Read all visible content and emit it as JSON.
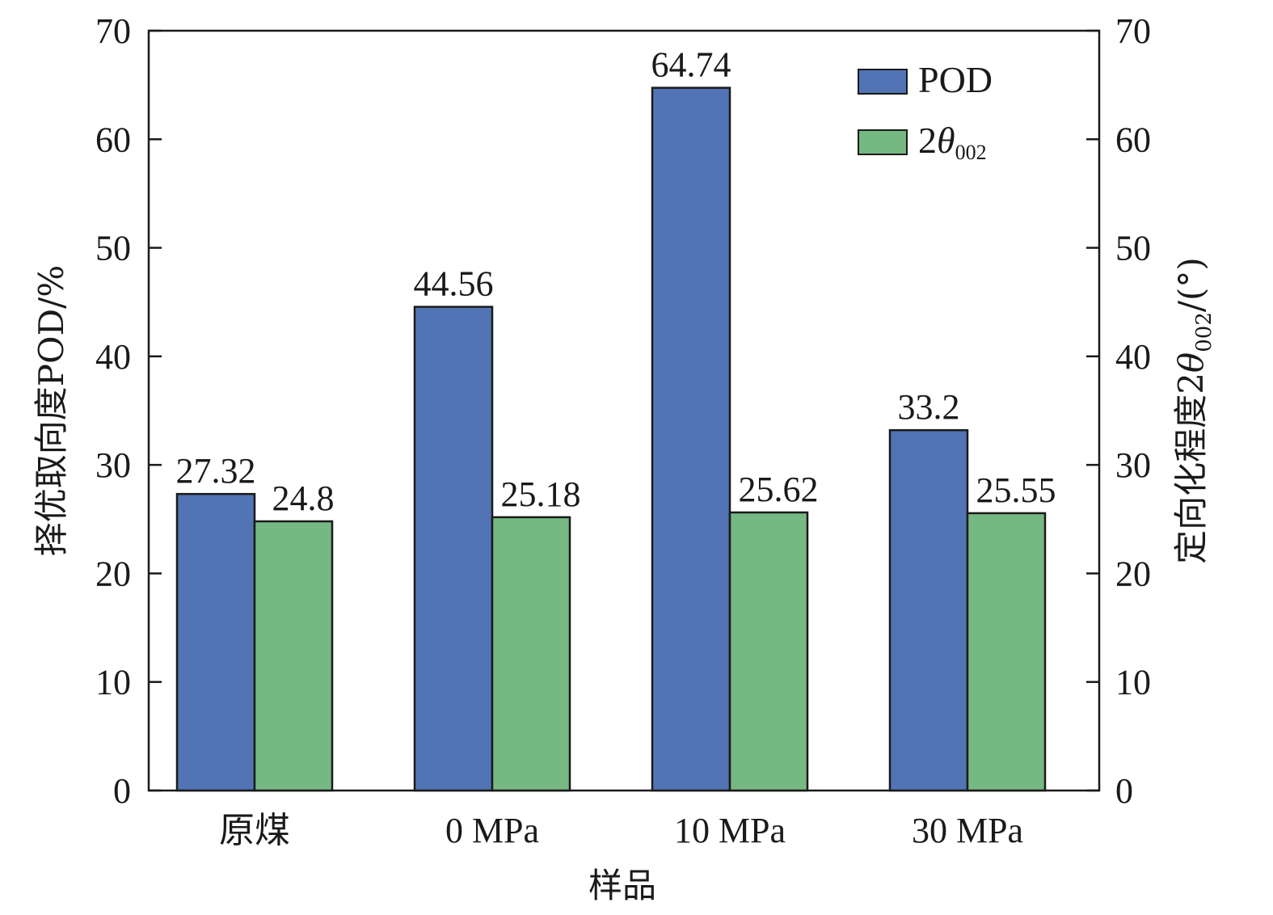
{
  "chart_data": {
    "type": "bar",
    "categories": [
      "原煤",
      "0 MPa",
      "10 MPa",
      "30 MPa"
    ],
    "series": [
      {
        "name": "POD",
        "values": [
          27.32,
          44.56,
          64.74,
          33.2
        ],
        "labels": [
          "27.32",
          "44.56",
          "64.74",
          "33.2"
        ],
        "color": "#5274b5",
        "axis": "left"
      },
      {
        "name": "2θ002",
        "values": [
          24.8,
          25.18,
          25.62,
          25.55
        ],
        "labels": [
          "24.8",
          "25.18",
          "25.62",
          "25.55"
        ],
        "color": "#76b882",
        "axis": "right"
      }
    ],
    "xlabel": "样品",
    "ylabel_left": "择优取向度POD/%",
    "ylabel_right": {
      "prefix": "定向化程度2",
      "theta": "θ",
      "subscript": "002",
      "suffix": "/(°)"
    },
    "legend_entries": [
      {
        "main": "POD",
        "theta": "",
        "subscript": ""
      },
      {
        "main": "2",
        "theta": "θ",
        "subscript": "002"
      }
    ],
    "ylim_left": [
      0,
      70
    ],
    "ylim_right": [
      0,
      70
    ],
    "yticks": [
      0,
      10,
      20,
      30,
      40,
      50,
      60,
      70
    ],
    "grid": false,
    "legend_position": "top-right",
    "bar_outline_color": "#1a1a1a"
  }
}
